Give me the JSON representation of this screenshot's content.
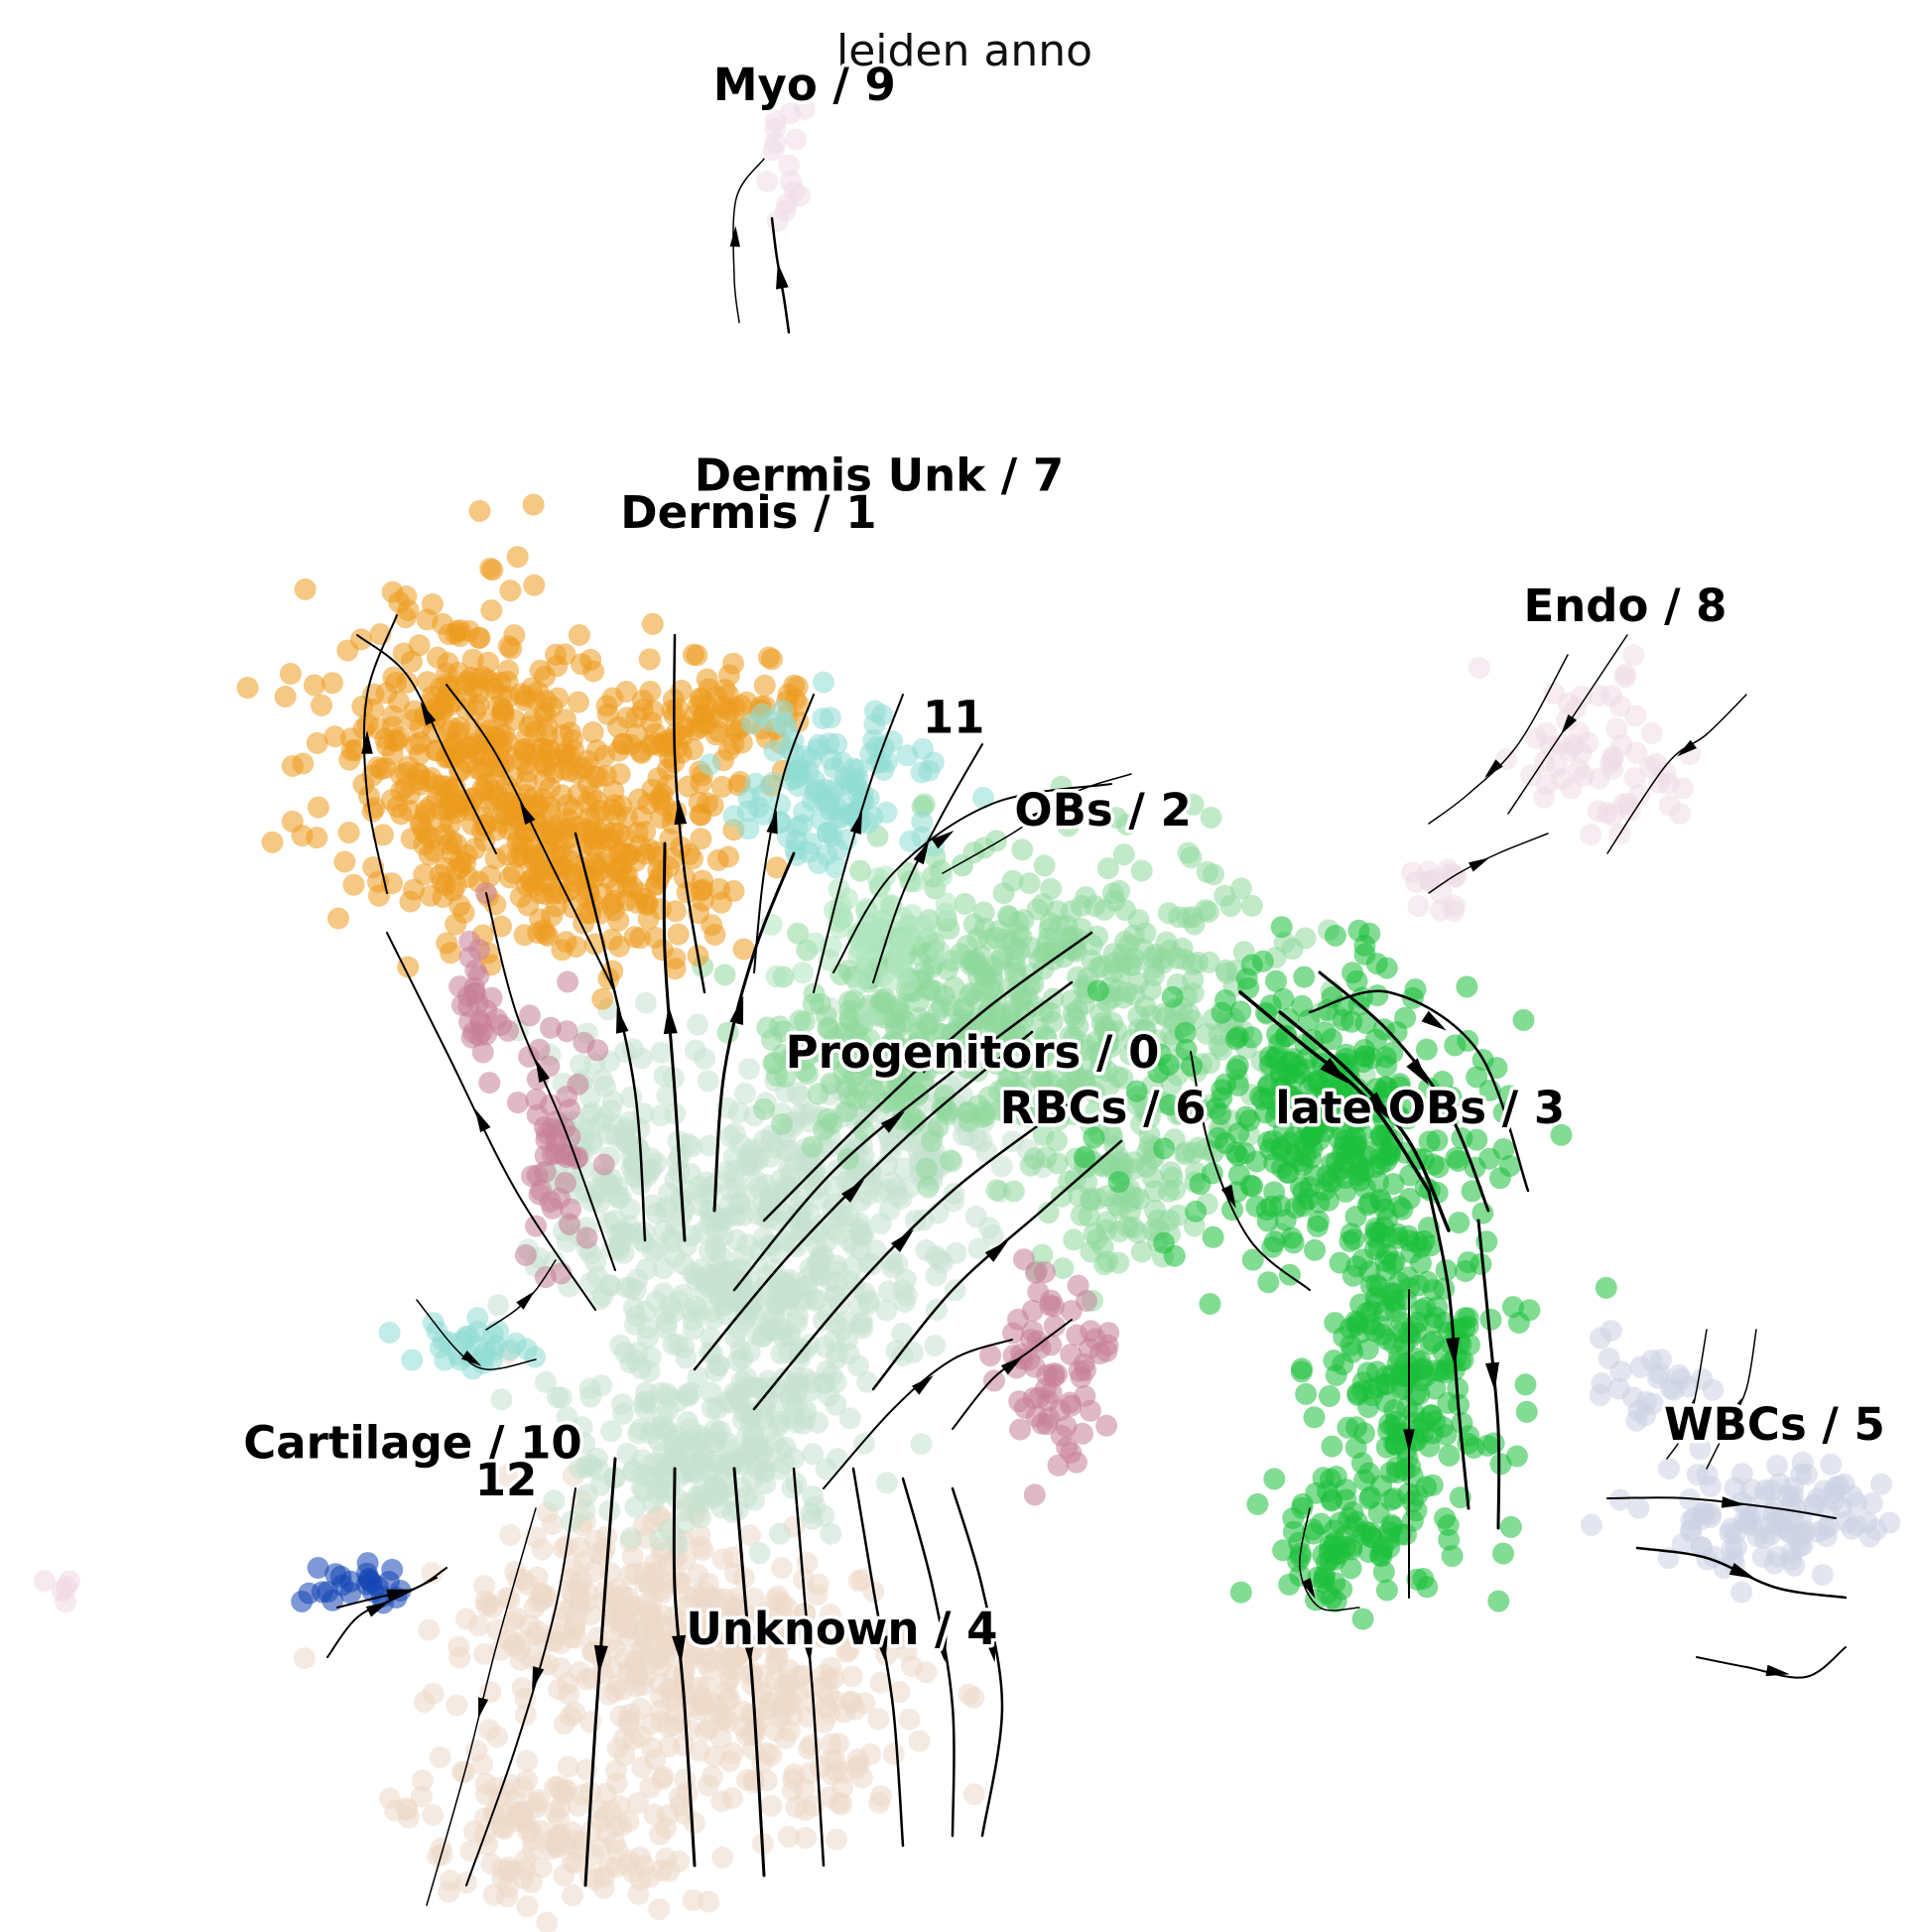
{
  "chart_data": {
    "type": "scatter",
    "title": "leiden anno",
    "xlabel": "",
    "ylabel": "",
    "grid": false,
    "axes_visible": false,
    "legend": "on data",
    "overlay": "velocity streamlines with arrowheads",
    "clusters": [
      {
        "name": "Progenitors / 0",
        "color": "#c6e2cf",
        "x": 0.5,
        "y": 0.47
      },
      {
        "name": "Dermis / 1",
        "color": "#ec9a1d",
        "x": 0.38,
        "y": 0.76
      },
      {
        "name": "OBs / 2",
        "color": "#8fd89c",
        "x": 0.57,
        "y": 0.6
      },
      {
        "name": "late OBs / 3",
        "color": "#1bbf3b",
        "x": 0.74,
        "y": 0.44
      },
      {
        "name": "Unknown / 4",
        "color": "#edd8c8",
        "x": 0.43,
        "y": 0.16
      },
      {
        "name": "WBCs / 5",
        "color": "#ccd1e4",
        "x": 0.93,
        "y": 0.27
      },
      {
        "name": "RBCs / 6",
        "color": "#c77f98",
        "x": 0.57,
        "y": 0.44
      },
      {
        "name": "Dermis Unk / 7",
        "color": "#8fdcd3",
        "x": 0.45,
        "y": 0.78
      },
      {
        "name": "Endo / 8",
        "color": "#efdce6",
        "x": 0.85,
        "y": 0.71
      },
      {
        "name": "Myo / 9",
        "color": "#f0dde8",
        "x": 0.41,
        "y": 0.99
      },
      {
        "name": "Cartilage / 10",
        "color": "#1446b4",
        "x": 0.2,
        "y": 0.26
      },
      {
        "name": "11",
        "color": "#aee6bd",
        "x": 0.49,
        "y": 0.65
      },
      {
        "name": "12",
        "color": "#f1d7e4",
        "x": 0.25,
        "y": 0.24
      }
    ]
  }
}
